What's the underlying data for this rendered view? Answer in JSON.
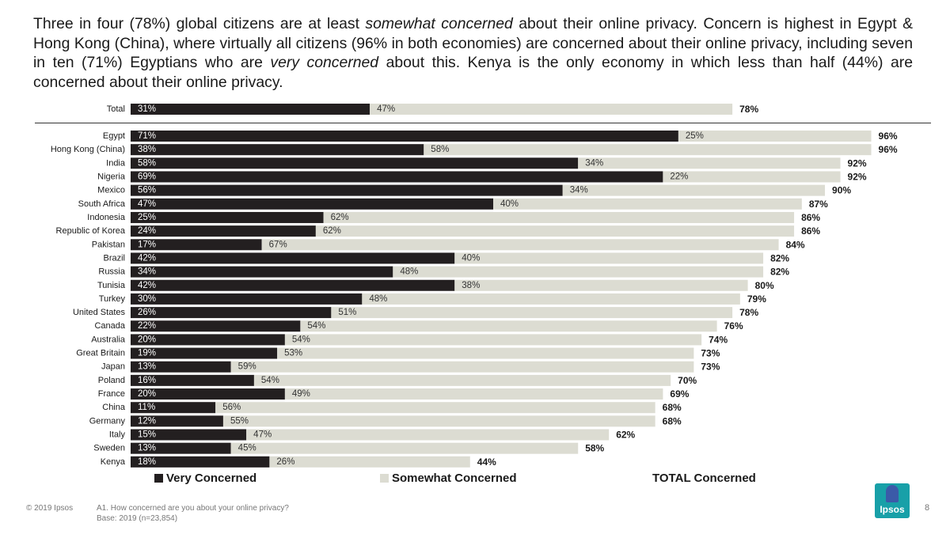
{
  "headline": {
    "p1": "Three in four (78%) global citizens are at least ",
    "em1": "somewhat concerned",
    "p2": " about their online privacy. Concern is highest in Egypt & Hong Kong (China), where virtually all citizens (96% in both economies) are concerned about their online privacy, including seven in ten (71%) Egyptians who are ",
    "em2": "very concerned",
    "p3": " about this. Kenya is the only economy in which less than half (44%) are concerned about their online privacy."
  },
  "colors": {
    "very": "#231f20",
    "somewhat": "#dcdcd2",
    "label_on_dark": "#ffffff",
    "label_on_light": "#333333"
  },
  "chart_data": {
    "type": "bar",
    "orientation": "horizontal",
    "stacked": true,
    "unit": "%",
    "series": [
      {
        "name": "Very Concerned",
        "color": "#231f20"
      },
      {
        "name": "Somewhat Concerned",
        "color": "#dcdcd2"
      }
    ],
    "total_label": "TOTAL Concerned",
    "rows": [
      {
        "label": "Total",
        "very": 31,
        "somewhat": 47,
        "total": 78,
        "summary": true
      },
      {
        "label": "Egypt",
        "very": 71,
        "somewhat": 25,
        "total": 96
      },
      {
        "label": "Hong Kong (China)",
        "very": 38,
        "somewhat": 58,
        "total": 96
      },
      {
        "label": "India",
        "very": 58,
        "somewhat": 34,
        "total": 92
      },
      {
        "label": "Nigeria",
        "very": 69,
        "somewhat": 22,
        "total": 92
      },
      {
        "label": "Mexico",
        "very": 56,
        "somewhat": 34,
        "total": 90
      },
      {
        "label": "South Africa",
        "very": 47,
        "somewhat": 40,
        "total": 87
      },
      {
        "label": "Indonesia",
        "very": 25,
        "somewhat": 62,
        "total": 86
      },
      {
        "label": "Republic of Korea",
        "very": 24,
        "somewhat": 62,
        "total": 86
      },
      {
        "label": "Pakistan",
        "very": 17,
        "somewhat": 67,
        "total": 84
      },
      {
        "label": "Brazil",
        "very": 42,
        "somewhat": 40,
        "total": 82
      },
      {
        "label": "Russia",
        "very": 34,
        "somewhat": 48,
        "total": 82
      },
      {
        "label": "Tunisia",
        "very": 42,
        "somewhat": 38,
        "total": 80
      },
      {
        "label": "Turkey",
        "very": 30,
        "somewhat": 48,
        "total": 79
      },
      {
        "label": "United States",
        "very": 26,
        "somewhat": 51,
        "total": 78
      },
      {
        "label": "Canada",
        "very": 22,
        "somewhat": 54,
        "total": 76
      },
      {
        "label": "Australia",
        "very": 20,
        "somewhat": 54,
        "total": 74
      },
      {
        "label": "Great Britain",
        "very": 19,
        "somewhat": 53,
        "total": 73
      },
      {
        "label": "Japan",
        "very": 13,
        "somewhat": 59,
        "total": 73
      },
      {
        "label": "Poland",
        "very": 16,
        "somewhat": 54,
        "total": 70
      },
      {
        "label": "France",
        "very": 20,
        "somewhat": 49,
        "total": 69
      },
      {
        "label": "China",
        "very": 11,
        "somewhat": 56,
        "total": 68
      },
      {
        "label": "Germany",
        "very": 12,
        "somewhat": 55,
        "total": 68
      },
      {
        "label": "Italy",
        "very": 15,
        "somewhat": 47,
        "total": 62
      },
      {
        "label": "Sweden",
        "very": 13,
        "somewhat": 45,
        "total": 58
      },
      {
        "label": "Kenya",
        "very": 18,
        "somewhat": 26,
        "total": 44
      }
    ]
  },
  "legend": {
    "very": "Very Concerned",
    "somewhat": "Somewhat Concerned",
    "total": "TOTAL Concerned"
  },
  "footer": {
    "copyright": "© 2019 Ipsos",
    "question": "A1. How concerned are you about your online privacy?",
    "base": "Base: 2019 (n=23,854)",
    "page": "8",
    "logo_text": "Ipsos"
  }
}
